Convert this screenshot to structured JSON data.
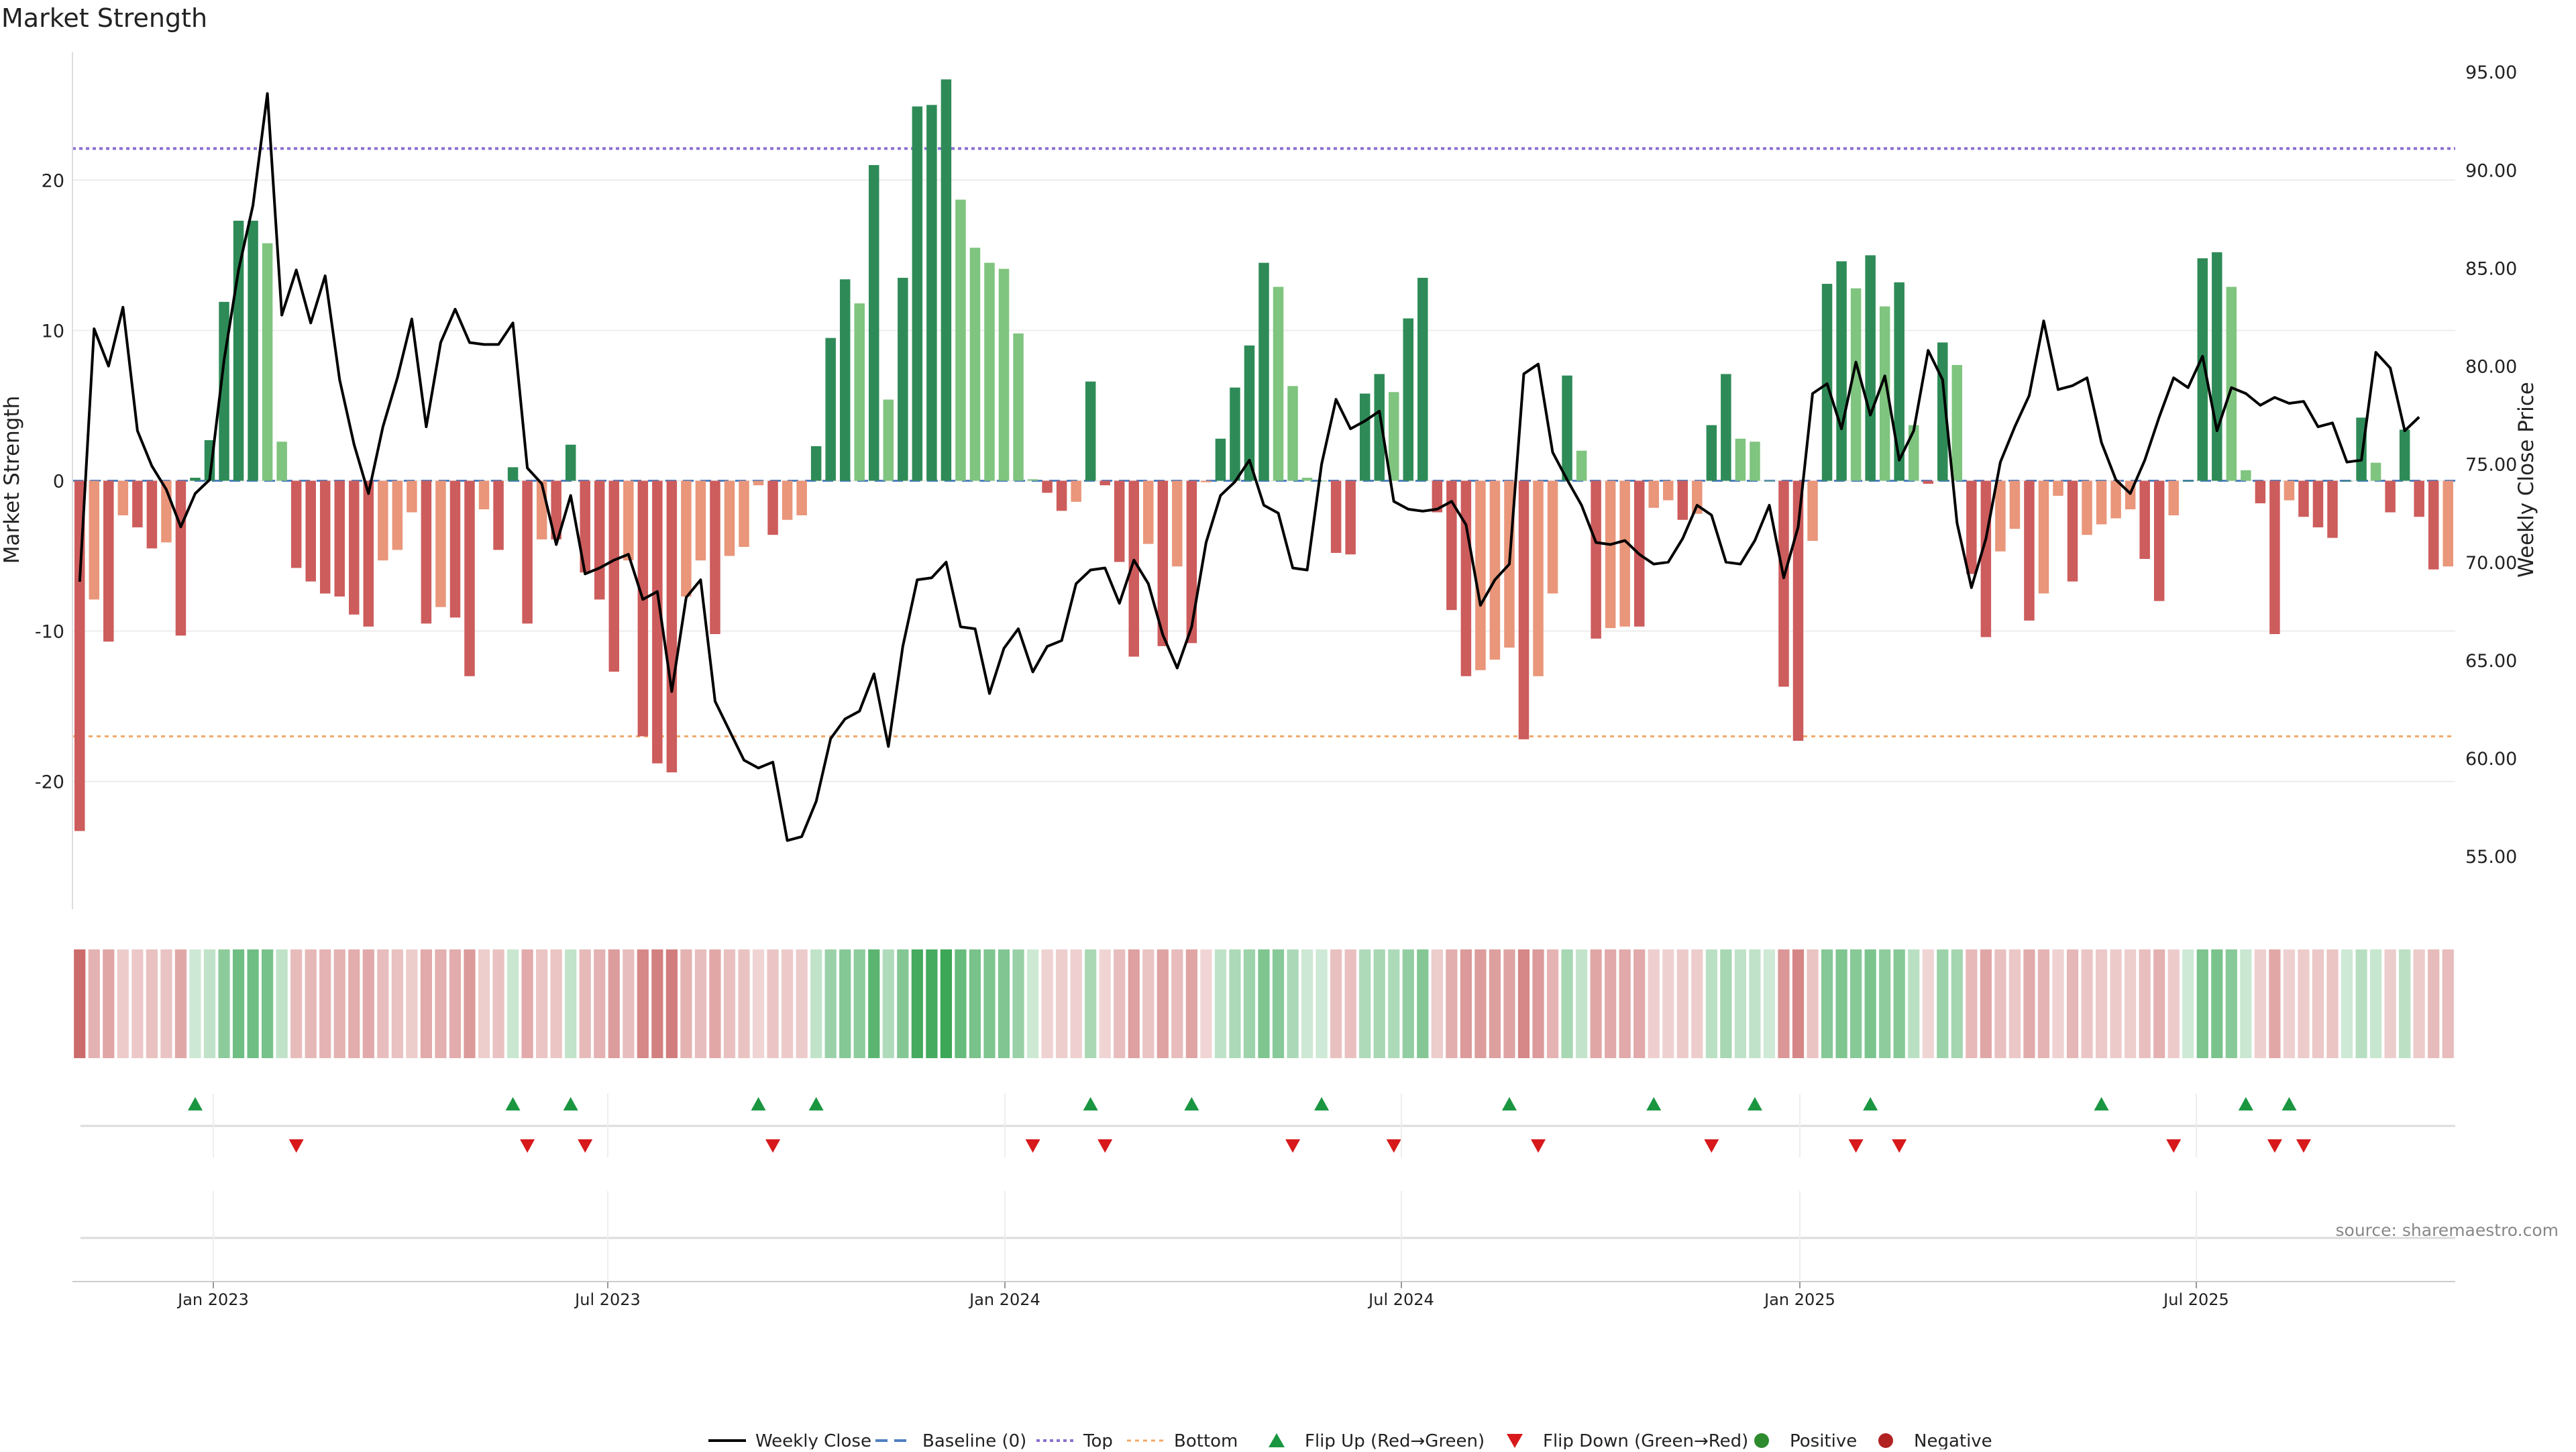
{
  "chart_data": {
    "type": "bar",
    "title": "Market Strength",
    "ylabel_left": "Market Strength",
    "ylabel_right": "Weekly Close Price",
    "source": "source: sharemaestro.com",
    "ylim_left": [
      -28.5,
      28.5
    ],
    "ylim_right": [
      52.3,
      96
    ],
    "yticks_left": [
      20,
      10,
      0,
      -10,
      -20
    ],
    "yticks_right": [
      "95.00",
      "90.00",
      "85.00",
      "80.00",
      "75.00",
      "70.00",
      "65.00",
      "60.00",
      "55.00"
    ],
    "x_ticks": [
      "Jan 2023",
      "Jul 2023",
      "Jan 2024",
      "Jul 2024",
      "Jan 2025",
      "Jul 2025"
    ],
    "top_line": 22.1,
    "bottom_line": -17.0,
    "colors": {
      "strong_pos": "#2e8b57",
      "weak_pos": "#7fc47f",
      "strong_neg": "#cd5c5c",
      "weak_neg": "#e9967a",
      "close_line": "#000000",
      "baseline": "#4f7fbf",
      "top": "#8a6fd1",
      "bottom": "#f0a868",
      "flip_up": "#1a9641",
      "flip_down": "#d7191c",
      "positive": "#2e8b2e",
      "negative": "#b22222"
    },
    "strength": [
      -23.3,
      -7.9,
      -10.7,
      -2.3,
      -3.1,
      -4.5,
      -4.1,
      -10.3,
      0.2,
      2.7,
      11.9,
      17.3,
      17.3,
      15.8,
      2.6,
      -5.8,
      -6.7,
      -7.5,
      -7.7,
      -8.9,
      -9.7,
      -5.3,
      -4.6,
      -2.1,
      -9.5,
      -8.4,
      -9.1,
      -13.0,
      -1.9,
      -4.6,
      0.9,
      -9.5,
      -3.9,
      -3.9,
      2.4,
      -6.1,
      -7.9,
      -12.7,
      -5.3,
      -17.0,
      -18.8,
      -19.4,
      -7.7,
      -5.3,
      -10.2,
      -5.0,
      -4.4,
      -0.3,
      -3.6,
      -2.6,
      -2.3,
      2.3,
      9.5,
      13.4,
      11.8,
      21.0,
      5.4,
      13.5,
      24.9,
      25.0,
      26.7,
      18.7,
      15.5,
      14.5,
      14.1,
      9.8,
      0.1,
      -0.8,
      -2.0,
      -1.4,
      6.6,
      -0.3,
      -5.4,
      -11.7,
      -4.2,
      -11.0,
      -5.7,
      -10.8,
      -0.1,
      2.8,
      6.2,
      9.0,
      14.5,
      12.9,
      6.3,
      0.2,
      0.0,
      -4.8,
      -4.9,
      5.8,
      7.1,
      5.9,
      10.8,
      13.5,
      -2.1,
      -8.6,
      -13.0,
      -12.6,
      -11.9,
      -11.1,
      -17.2,
      -13.0,
      -7.5,
      7.0,
      2.0,
      -10.5,
      -9.8,
      -9.7,
      -9.7,
      -1.8,
      -1.3,
      -2.6,
      -2.2,
      3.7,
      7.1,
      2.8,
      2.6,
      0.0,
      -13.7,
      -17.3,
      -4.0,
      13.1,
      14.6,
      12.8,
      15.0,
      11.6,
      13.2,
      3.7,
      -0.2,
      9.2,
      7.7,
      -6.2,
      -10.4,
      -4.7,
      -3.2,
      -9.3,
      -7.5,
      -1.0,
      -6.7,
      -3.6,
      -2.9,
      -2.5,
      -1.9,
      -5.2,
      -8.0,
      -2.3,
      0.0,
      14.8,
      15.2,
      12.9,
      0.7,
      -1.5,
      -10.2,
      -1.3,
      -2.4,
      -3.1,
      -3.8,
      0.0,
      4.2,
      1.2,
      -2.1,
      3.4,
      -2.4,
      -5.9,
      -5.7
    ],
    "weekly_close": [
      69.0,
      81.9,
      80.0,
      83.0,
      76.7,
      74.9,
      73.7,
      71.8,
      73.5,
      74.2,
      80.3,
      84.9,
      88.2,
      93.9,
      82.6,
      84.9,
      82.2,
      84.6,
      79.3,
      76.0,
      73.5,
      76.9,
      79.4,
      82.4,
      76.9,
      81.2,
      82.9,
      81.2,
      81.1,
      81.1,
      82.2,
      74.8,
      74.0,
      70.9,
      73.4,
      69.4,
      69.7,
      70.1,
      70.4,
      68.1,
      68.5,
      63.4,
      68.2,
      69.1,
      62.9,
      61.4,
      59.9,
      59.5,
      59.8,
      55.8,
      56.0,
      57.8,
      61.0,
      62.0,
      62.4,
      64.3,
      60.6,
      65.7,
      69.1,
      69.2,
      70.0,
      66.7,
      66.6,
      63.3,
      65.6,
      66.6,
      64.4,
      65.7,
      66.0,
      68.9,
      69.6,
      69.7,
      67.9,
      70.1,
      68.9,
      66.3,
      64.6,
      66.7,
      71.0,
      73.4,
      74.1,
      75.2,
      72.9,
      72.5,
      69.7,
      69.6,
      75.0,
      78.3,
      76.8,
      77.2,
      77.7,
      73.1,
      72.7,
      72.6,
      72.7,
      73.1,
      71.9,
      67.8,
      69.1,
      69.9,
      79.6,
      80.1,
      75.6,
      74.2,
      72.9,
      71.0,
      70.9,
      71.1,
      70.4,
      69.9,
      70.0,
      71.2,
      72.9,
      72.4,
      70.0,
      69.9,
      71.1,
      72.9,
      69.2,
      71.8,
      78.6,
      79.1,
      76.8,
      80.2,
      77.5,
      79.5,
      75.2,
      76.7,
      80.8,
      79.3,
      72.0,
      68.7,
      71.2,
      75.1,
      76.9,
      78.5,
      82.3,
      78.8,
      79.0,
      79.4,
      76.1,
      74.2,
      73.5,
      75.2,
      77.4,
      79.4,
      78.9,
      80.5,
      76.7,
      78.9,
      78.6,
      78.0,
      78.4,
      78.1,
      78.2,
      76.9,
      77.1,
      75.1,
      75.2,
      80.7,
      79.9,
      76.7,
      77.4
    ],
    "flip_up_weeks": [
      8,
      30,
      34,
      47,
      51,
      70,
      77,
      86,
      99,
      109,
      116,
      124,
      140,
      150,
      153
    ],
    "flip_down_weeks": [
      15,
      31,
      35,
      48,
      66,
      71,
      84,
      91,
      101,
      113,
      123,
      126,
      145,
      152,
      154
    ],
    "legend": [
      {
        "label": "Weekly Close",
        "kind": "line"
      },
      {
        "label": "Baseline (0)",
        "kind": "dash"
      },
      {
        "label": "Top",
        "kind": "dot"
      },
      {
        "label": "Bottom",
        "kind": "dotorange"
      },
      {
        "label": "Flip Up (Red→Green)",
        "kind": "tri-up"
      },
      {
        "label": "Flip Down (Green→Red)",
        "kind": "tri-down"
      },
      {
        "label": "Positive",
        "kind": "circle-pos"
      },
      {
        "label": "Negative",
        "kind": "circle-neg"
      }
    ]
  }
}
